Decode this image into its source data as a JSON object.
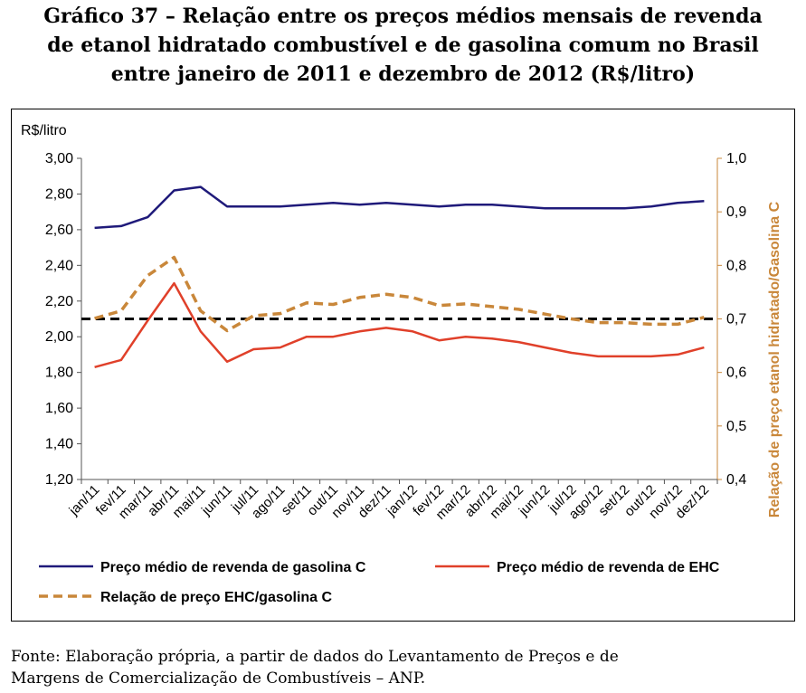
{
  "title": {
    "line1": "Gráfico 37 – Relação entre os preços médios mensais de revenda",
    "line2": "de etanol hidratado combustível e de gasolina comum no Brasil",
    "line3": "entre janeiro de 2011 e dezembro de 2012 (R$/litro)"
  },
  "source": {
    "line1": "Fonte: Elaboração própria, a partir de dados do Levantamento de Preços e de",
    "line2": "Margens de Comercialização de Combustíveis – ANP."
  },
  "chart_data": {
    "type": "line",
    "ylabel": "R$/litro",
    "y2label": "Relação de preço etanol hidratado/Gasolina C",
    "categories": [
      "jan/11",
      "fev/11",
      "mar/11",
      "abr/11",
      "mai/11",
      "jun/11",
      "jul/11",
      "ago/11",
      "set/11",
      "out/11",
      "nov/11",
      "dez/11",
      "jan/12",
      "fev/12",
      "mar/12",
      "abr/12",
      "mai/12",
      "jun/12",
      "jul/12",
      "ago/12",
      "set/12",
      "out/12",
      "nov/12",
      "dez/12"
    ],
    "ylim": [
      1.2,
      3.0
    ],
    "yticks": [
      "3,00",
      "2,80",
      "2,60",
      "2,40",
      "2,20",
      "2,00",
      "1,80",
      "1,60",
      "1,40",
      "1,20"
    ],
    "y2lim": [
      0.4,
      1.0
    ],
    "y2ticks": [
      "1,0",
      "0,9",
      "0,8",
      "0,7",
      "0,6",
      "0,5",
      "0,4"
    ],
    "reference_line": 0.7,
    "legend_position": "bottom",
    "series": [
      {
        "name": "Preço médio de revenda de gasolina C",
        "axis": "left",
        "color": "#1f1a7a",
        "dash": "solid",
        "values": [
          2.61,
          2.62,
          2.67,
          2.82,
          2.84,
          2.73,
          2.73,
          2.73,
          2.74,
          2.75,
          2.74,
          2.75,
          2.74,
          2.73,
          2.74,
          2.74,
          2.73,
          2.72,
          2.72,
          2.72,
          2.72,
          2.73,
          2.75,
          2.76
        ]
      },
      {
        "name": "Preço médio de revenda de EHC",
        "axis": "left",
        "color": "#e0402a",
        "dash": "solid",
        "values": [
          1.83,
          1.87,
          2.09,
          2.3,
          2.03,
          1.86,
          1.93,
          1.94,
          2.0,
          2.0,
          2.03,
          2.05,
          2.03,
          1.98,
          2.0,
          1.99,
          1.97,
          1.94,
          1.91,
          1.89,
          1.89,
          1.89,
          1.9,
          1.94
        ]
      },
      {
        "name": "Relação de preço EHC/gasolina C",
        "axis": "right",
        "color": "#c9873a",
        "dash": "dashed",
        "values": [
          0.701,
          0.715,
          0.781,
          0.815,
          0.715,
          0.678,
          0.706,
          0.71,
          0.73,
          0.727,
          0.74,
          0.746,
          0.74,
          0.725,
          0.728,
          0.723,
          0.718,
          0.709,
          0.7,
          0.693,
          0.693,
          0.69,
          0.69,
          0.703
        ]
      }
    ]
  }
}
